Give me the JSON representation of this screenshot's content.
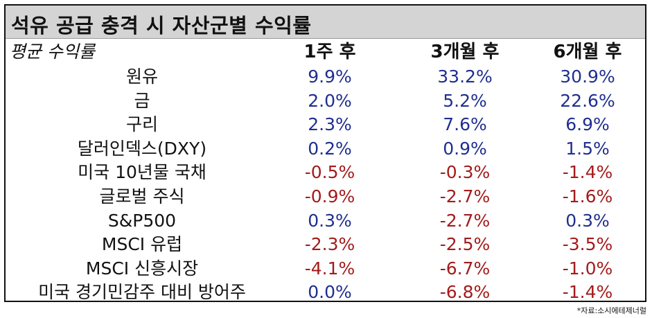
{
  "chart_data": {
    "type": "table",
    "title": "석유 공급 충격 시 자산군별 수익률",
    "row_header": "평균 수익률",
    "columns": [
      "1주 후",
      "3개월 후",
      "6개월 후"
    ],
    "rows": [
      {
        "label": "원유",
        "values": [
          "9.9%",
          "33.2%",
          "30.9%"
        ]
      },
      {
        "label": "금",
        "values": [
          "2.0%",
          "5.2%",
          "22.6%"
        ]
      },
      {
        "label": "구리",
        "values": [
          "2.3%",
          "7.6%",
          "6.9%"
        ]
      },
      {
        "label": "달러인덱스(DXY)",
        "values": [
          "0.2%",
          "0.9%",
          "1.5%"
        ]
      },
      {
        "label": "미국 10년물 국채",
        "values": [
          "-0.5%",
          "-0.3%",
          "-1.4%"
        ]
      },
      {
        "label": "글로벌 주식",
        "values": [
          "-0.9%",
          "-2.7%",
          "-1.6%"
        ]
      },
      {
        "label": "S&P500",
        "values": [
          "0.3%",
          "-2.7%",
          "0.3%"
        ]
      },
      {
        "label": "MSCI 유럽",
        "values": [
          "-2.3%",
          "-2.5%",
          "-3.5%"
        ]
      },
      {
        "label": "MSCI 신흥시장",
        "values": [
          "-4.1%",
          "-6.7%",
          "-1.0%"
        ]
      },
      {
        "label": "미국 경기민감주 대비 방어주",
        "values": [
          "0.0%",
          "-6.8%",
          "-1.4%"
        ]
      }
    ],
    "colors": {
      "positive": "#1f2f8f",
      "negative": "#a31b1b",
      "title_bg": "#d4d4d4"
    }
  },
  "source": "*자료:소시에테제너럴"
}
